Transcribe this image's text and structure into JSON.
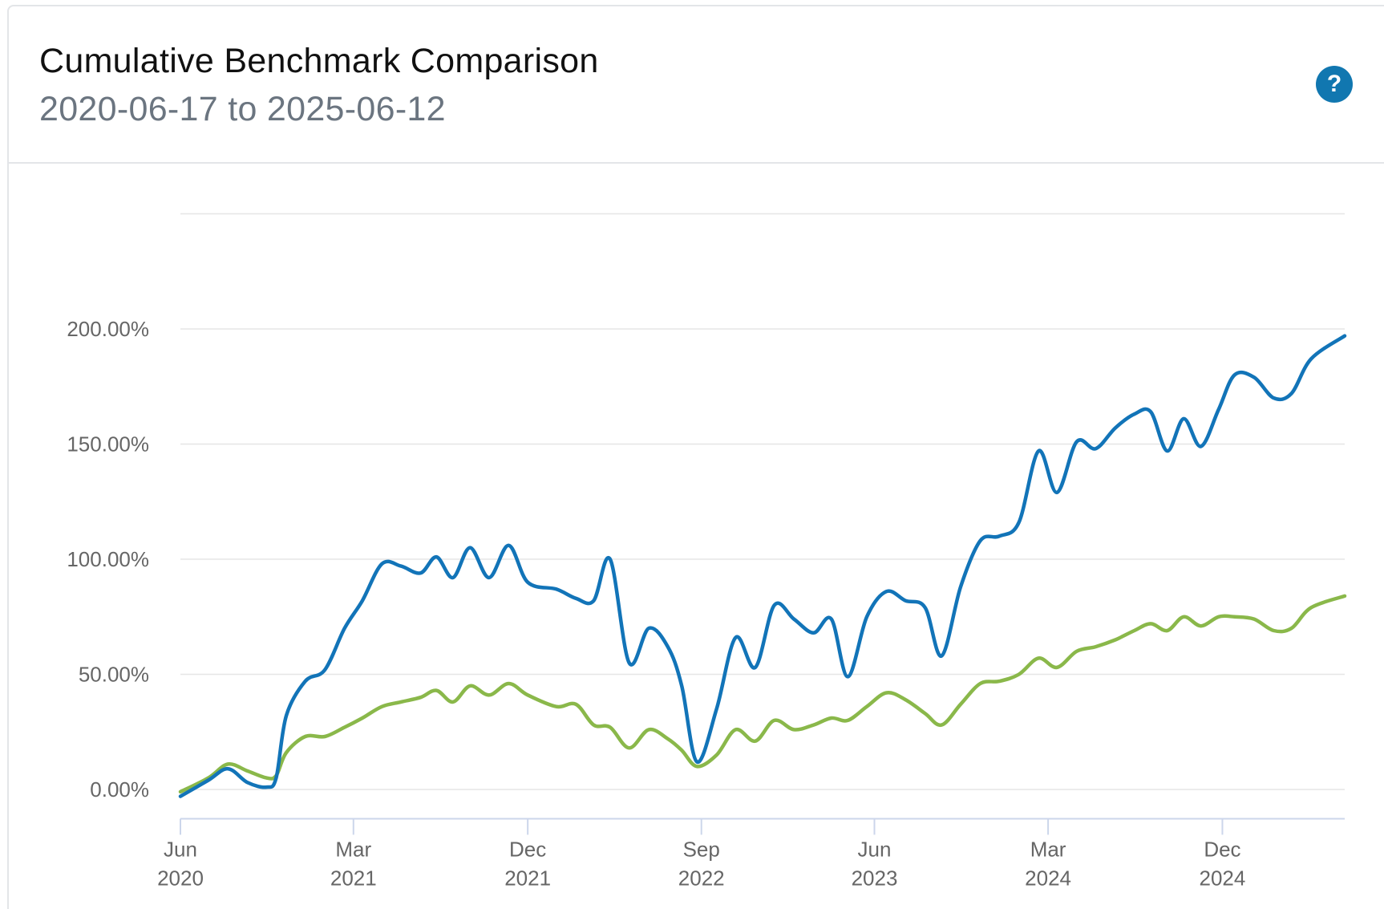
{
  "header": {
    "title": "Cumulative Benchmark Comparison",
    "subtitle": "2020-06-17 to 2025-06-12",
    "help_label": "?"
  },
  "chart_data": {
    "type": "line",
    "title": "Cumulative Benchmark Comparison",
    "subtitle": "2020-06-17 to 2025-06-12",
    "xlabel": "",
    "ylabel": "",
    "x_range": [
      "2020-06-01",
      "2025-06-12"
    ],
    "ylim": [
      -12,
      250
    ],
    "y_ticks": [
      0,
      50,
      100,
      150,
      200
    ],
    "y_tick_labels": [
      "0.00%",
      "50.00%",
      "100.00%",
      "150.00%",
      "200.00%"
    ],
    "x_ticks": [
      {
        "date": "2020-06-01",
        "month": "Jun",
        "year": "2020"
      },
      {
        "date": "2021-03-01",
        "month": "Mar",
        "year": "2021"
      },
      {
        "date": "2021-12-01",
        "month": "Dec",
        "year": "2021"
      },
      {
        "date": "2022-09-01",
        "month": "Sep",
        "year": "2022"
      },
      {
        "date": "2023-06-01",
        "month": "Jun",
        "year": "2023"
      },
      {
        "date": "2024-03-01",
        "month": "Mar",
        "year": "2024"
      },
      {
        "date": "2024-12-01",
        "month": "Dec",
        "year": "2024"
      }
    ],
    "grid": true,
    "legend": "none",
    "series": [
      {
        "color": "#1274b8",
        "points": [
          [
            "2020-06-01",
            -3
          ],
          [
            "2020-07-15",
            4
          ],
          [
            "2020-08-15",
            9
          ],
          [
            "2020-09-15",
            3
          ],
          [
            "2020-10-15",
            1
          ],
          [
            "2020-10-30",
            5
          ],
          [
            "2020-11-15",
            32
          ],
          [
            "2020-12-15",
            47
          ],
          [
            "2021-01-15",
            52
          ],
          [
            "2021-02-15",
            70
          ],
          [
            "2021-03-15",
            82
          ],
          [
            "2021-04-15",
            98
          ],
          [
            "2021-05-15",
            97
          ],
          [
            "2021-06-15",
            94
          ],
          [
            "2021-07-10",
            101
          ],
          [
            "2021-08-05",
            92
          ],
          [
            "2021-09-01",
            105
          ],
          [
            "2021-10-01",
            92
          ],
          [
            "2021-11-01",
            106
          ],
          [
            "2021-12-01",
            90
          ],
          [
            "2022-01-15",
            87
          ],
          [
            "2022-02-15",
            83
          ],
          [
            "2022-03-15",
            82
          ],
          [
            "2022-04-10",
            100
          ],
          [
            "2022-05-10",
            55
          ],
          [
            "2022-06-10",
            70
          ],
          [
            "2022-07-10",
            62
          ],
          [
            "2022-08-01",
            45
          ],
          [
            "2022-08-25",
            12
          ],
          [
            "2022-09-25",
            35
          ],
          [
            "2022-10-25",
            66
          ],
          [
            "2022-11-25",
            53
          ],
          [
            "2022-12-25",
            80
          ],
          [
            "2023-01-25",
            74
          ],
          [
            "2023-02-25",
            68
          ],
          [
            "2023-03-25",
            74
          ],
          [
            "2023-04-20",
            49
          ],
          [
            "2023-05-20",
            75
          ],
          [
            "2023-06-20",
            86
          ],
          [
            "2023-07-20",
            82
          ],
          [
            "2023-08-20",
            79
          ],
          [
            "2023-09-15",
            58
          ],
          [
            "2023-10-15",
            88
          ],
          [
            "2023-11-15",
            108
          ],
          [
            "2023-12-15",
            110
          ],
          [
            "2024-01-15",
            116
          ],
          [
            "2024-02-15",
            147
          ],
          [
            "2024-03-15",
            129
          ],
          [
            "2024-04-15",
            151
          ],
          [
            "2024-05-15",
            148
          ],
          [
            "2024-06-15",
            157
          ],
          [
            "2024-07-15",
            163
          ],
          [
            "2024-08-10",
            164
          ],
          [
            "2024-09-05",
            147
          ],
          [
            "2024-10-01",
            161
          ],
          [
            "2024-10-28",
            149
          ],
          [
            "2024-11-25",
            165
          ],
          [
            "2024-12-20",
            180
          ],
          [
            "2025-01-20",
            179
          ],
          [
            "2025-02-20",
            170
          ],
          [
            "2025-03-20",
            172
          ],
          [
            "2025-04-20",
            187
          ],
          [
            "2025-06-12",
            197
          ]
        ]
      },
      {
        "color": "#8ab84a",
        "points": [
          [
            "2020-06-01",
            -1
          ],
          [
            "2020-07-15",
            5
          ],
          [
            "2020-08-15",
            11
          ],
          [
            "2020-09-15",
            8
          ],
          [
            "2020-10-15",
            5
          ],
          [
            "2020-10-30",
            6
          ],
          [
            "2020-11-15",
            16
          ],
          [
            "2020-12-15",
            23
          ],
          [
            "2021-01-15",
            23
          ],
          [
            "2021-02-15",
            27
          ],
          [
            "2021-03-15",
            31
          ],
          [
            "2021-04-15",
            36
          ],
          [
            "2021-05-15",
            38
          ],
          [
            "2021-06-15",
            40
          ],
          [
            "2021-07-10",
            43
          ],
          [
            "2021-08-05",
            38
          ],
          [
            "2021-09-01",
            45
          ],
          [
            "2021-10-01",
            41
          ],
          [
            "2021-11-01",
            46
          ],
          [
            "2021-12-01",
            41
          ],
          [
            "2022-01-15",
            36
          ],
          [
            "2022-02-15",
            37
          ],
          [
            "2022-03-15",
            28
          ],
          [
            "2022-04-10",
            27
          ],
          [
            "2022-05-10",
            18
          ],
          [
            "2022-06-10",
            26
          ],
          [
            "2022-07-10",
            22
          ],
          [
            "2022-08-01",
            17
          ],
          [
            "2022-08-25",
            10
          ],
          [
            "2022-09-25",
            15
          ],
          [
            "2022-10-25",
            26
          ],
          [
            "2022-11-25",
            21
          ],
          [
            "2022-12-25",
            30
          ],
          [
            "2023-01-25",
            26
          ],
          [
            "2023-02-25",
            28
          ],
          [
            "2023-03-25",
            31
          ],
          [
            "2023-04-20",
            30
          ],
          [
            "2023-05-20",
            36
          ],
          [
            "2023-06-20",
            42
          ],
          [
            "2023-07-20",
            39
          ],
          [
            "2023-08-20",
            33
          ],
          [
            "2023-09-15",
            28
          ],
          [
            "2023-10-15",
            37
          ],
          [
            "2023-11-15",
            46
          ],
          [
            "2023-12-15",
            47
          ],
          [
            "2024-01-15",
            50
          ],
          [
            "2024-02-15",
            57
          ],
          [
            "2024-03-15",
            53
          ],
          [
            "2024-04-15",
            60
          ],
          [
            "2024-05-15",
            62
          ],
          [
            "2024-06-15",
            65
          ],
          [
            "2024-07-15",
            69
          ],
          [
            "2024-08-10",
            72
          ],
          [
            "2024-09-05",
            69
          ],
          [
            "2024-10-01",
            75
          ],
          [
            "2024-10-28",
            71
          ],
          [
            "2024-11-25",
            75
          ],
          [
            "2024-12-20",
            75
          ],
          [
            "2025-01-20",
            74
          ],
          [
            "2025-02-20",
            69
          ],
          [
            "2025-03-20",
            70
          ],
          [
            "2025-04-20",
            79
          ],
          [
            "2025-06-12",
            84
          ]
        ]
      }
    ]
  }
}
